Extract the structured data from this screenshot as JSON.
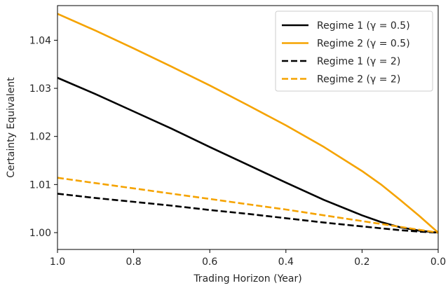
{
  "chart_data": {
    "type": "line",
    "xlabel": "Trading Horizon (Year)",
    "ylabel": "Certainty Equivalent",
    "xlim": [
      1.0,
      0.0
    ],
    "ylim": [
      0.9965,
      1.0472
    ],
    "x_inverted": true,
    "xticks": [
      1.0,
      0.8,
      0.6,
      0.4,
      0.2,
      0.0
    ],
    "xtick_labels": [
      "1.0",
      "0.8",
      "0.6",
      "0.4",
      "0.2",
      "0.0"
    ],
    "yticks": [
      1.0,
      1.01,
      1.02,
      1.03,
      1.04
    ],
    "ytick_labels": [
      "1.00",
      "1.01",
      "1.02",
      "1.03",
      "1.04"
    ],
    "grid": false,
    "legend_position": "top-right",
    "x": [
      1.0,
      0.9,
      0.8,
      0.7,
      0.6,
      0.5,
      0.4,
      0.3,
      0.2,
      0.15,
      0.1,
      0.05,
      0.0
    ],
    "series": [
      {
        "name": "Regime 1 (γ = 0.5)",
        "color": "#000000",
        "dash": "solid",
        "values": [
          1.0322,
          1.0288,
          1.0252,
          1.0216,
          1.0178,
          1.0141,
          1.0104,
          1.0068,
          1.0036,
          1.0022,
          1.0011,
          1.0004,
          1.0
        ]
      },
      {
        "name": "Regime 2 (γ = 0.5)",
        "color": "#f5a300",
        "dash": "solid",
        "values": [
          1.0455,
          1.042,
          1.0383,
          1.0345,
          1.0306,
          1.0265,
          1.0223,
          1.0178,
          1.0128,
          1.01,
          1.0068,
          1.0035,
          1.0
        ]
      },
      {
        "name": "Regime 1 (γ = 2)",
        "color": "#000000",
        "dash": "dashed",
        "values": [
          1.0081,
          1.0072,
          1.0064,
          1.0056,
          1.0047,
          1.0039,
          1.003,
          1.0021,
          1.0013,
          1.0009,
          1.0005,
          1.0002,
          1.0
        ]
      },
      {
        "name": "Regime 2 (γ = 2)",
        "color": "#f5a300",
        "dash": "dashed",
        "values": [
          1.0114,
          1.0103,
          1.0092,
          1.0081,
          1.007,
          1.0059,
          1.0048,
          1.0036,
          1.0024,
          1.0018,
          1.0012,
          1.0006,
          1.0
        ]
      }
    ]
  }
}
